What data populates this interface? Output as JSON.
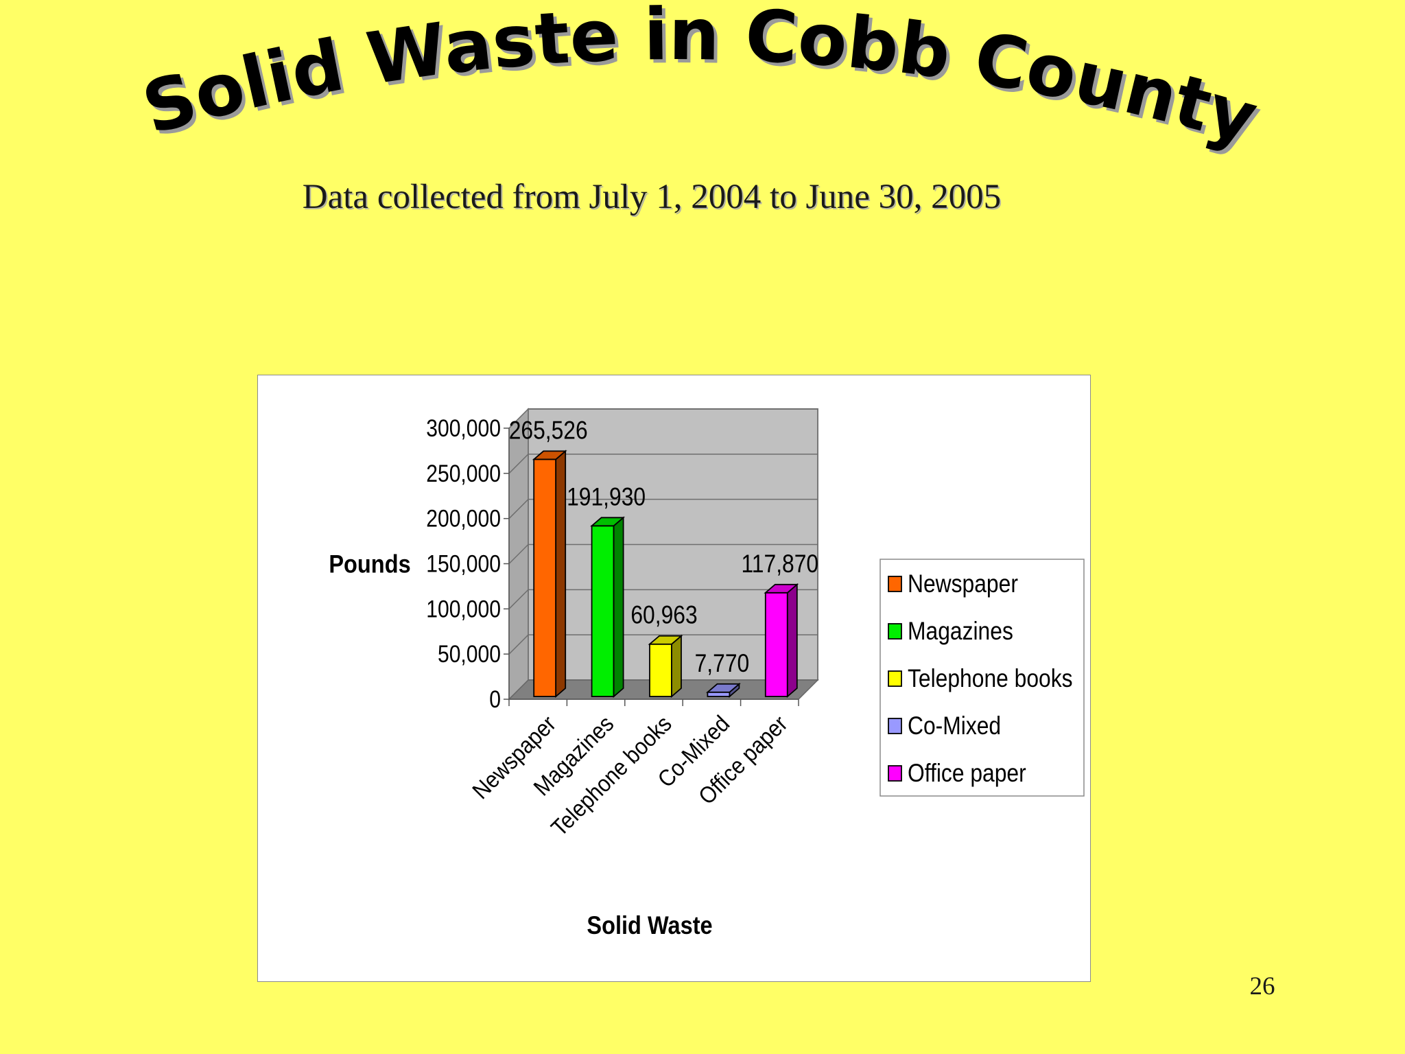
{
  "slide": {
    "title": "Solid Waste in Cobb County",
    "subtitle": "Data collected from July 1, 2004 to June 30, 2005",
    "page_number": "26"
  },
  "colors": {
    "background": "#ffff66",
    "plot_background": "#c0c0c0",
    "floor": "#808080"
  },
  "chart_data": {
    "type": "bar",
    "style": "3d-column",
    "categories": [
      "Newspaper",
      "Magazines",
      "Telephone books",
      "Co-Mixed",
      "Office paper"
    ],
    "values": [
      265526,
      191930,
      60963,
      7770,
      117870
    ],
    "data_labels": [
      "265,526",
      "191,930",
      "60,963",
      "7,770",
      "117,870"
    ],
    "colors": [
      "#ff6600",
      "#00ee00",
      "#ffff00",
      "#9999ff",
      "#ff00ff"
    ],
    "ylim": [
      0,
      300000
    ],
    "yticks": [
      0,
      50000,
      100000,
      150000,
      200000,
      250000,
      300000
    ],
    "ytick_labels": [
      "0",
      "50,000",
      "100,000",
      "150,000",
      "200,000",
      "250,000",
      "300,000"
    ],
    "xlabel": "Solid Waste",
    "ylabel": "Pounds",
    "legend": {
      "placement": "right",
      "entries": [
        "Newspaper",
        "Magazines",
        "Telephone books",
        "Co-Mixed",
        "Office paper"
      ]
    },
    "grid": true
  }
}
